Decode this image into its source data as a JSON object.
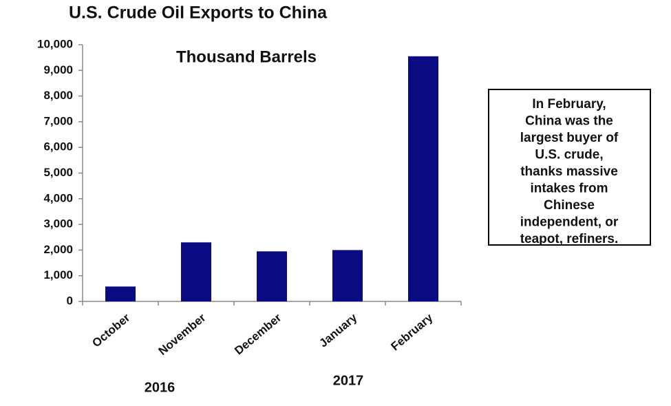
{
  "chart_data": {
    "type": "bar",
    "title": "U.S. Crude Oil Exports to China",
    "subtitle": "Thousand Barrels",
    "categories": [
      "October",
      "November",
      "December",
      "January",
      "February"
    ],
    "values": [
      580,
      2300,
      1950,
      2000,
      9550
    ],
    "color": "#0a0a82",
    "ylim": [
      0,
      10000
    ],
    "yticks": [
      0,
      {
        "value": 1000,
        "label": "1,000"
      },
      {
        "value": 2000,
        "label": "2,000"
      },
      {
        "value": 3000,
        "label": "3,000"
      },
      {
        "value": 4000,
        "label": "4,000"
      },
      {
        "value": 5000,
        "label": "5,000"
      },
      {
        "value": 6000,
        "label": "6,000"
      },
      {
        "value": 7000,
        "label": "7,000"
      },
      {
        "value": 8000,
        "label": "8,000"
      },
      {
        "value": 9000,
        "label": "9,000"
      },
      {
        "value": 10000,
        "label": "10,000"
      }
    ],
    "year_labels": [
      "2016",
      "2017"
    ],
    "annotation": [
      "In February,",
      "China was the",
      "largest buyer of",
      "U.S. crude,",
      "thanks massive",
      "intakes from",
      "Chinese",
      "independent, or",
      "teapot, refiners."
    ]
  }
}
